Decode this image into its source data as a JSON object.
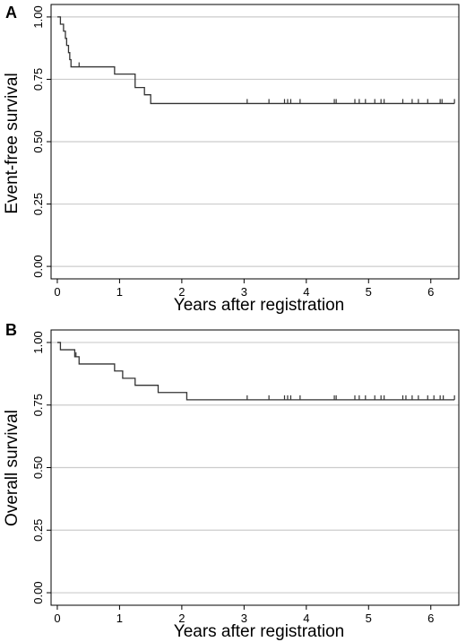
{
  "chart_data": [
    {
      "panel_letter": "A",
      "type": "line",
      "step": true,
      "xlabel": "Years after registration",
      "ylabel": "Event-free survival",
      "xlim": [
        -0.1,
        6.45
      ],
      "ylim": [
        -0.05,
        1.05
      ],
      "x_ticks": [
        0,
        1,
        2,
        3,
        4,
        5,
        6
      ],
      "y_ticks": [
        "0.00",
        "0.25",
        "0.50",
        "0.75",
        "1.00"
      ],
      "grid": "horizontal",
      "colors": {
        "line": "#333333",
        "grid": "#cccccc",
        "frame": "#000000"
      },
      "steps": [
        [
          0,
          1.0
        ],
        [
          0.05,
          0.971
        ],
        [
          0.1,
          0.943
        ],
        [
          0.13,
          0.914
        ],
        [
          0.15,
          0.886
        ],
        [
          0.18,
          0.857
        ],
        [
          0.2,
          0.829
        ],
        [
          0.22,
          0.8
        ],
        [
          0.92,
          0.771
        ],
        [
          1.25,
          0.717
        ],
        [
          1.4,
          0.688
        ],
        [
          1.5,
          0.653
        ],
        [
          6.38,
          0.653
        ]
      ],
      "censor_x": [
        0.35,
        3.05,
        3.4,
        3.65,
        3.7,
        3.75,
        3.9,
        4.45,
        4.48,
        4.78,
        4.85,
        4.95,
        5.1,
        5.2,
        5.25,
        5.55,
        5.7,
        5.8,
        5.95,
        6.15,
        6.18,
        6.38
      ]
    },
    {
      "panel_letter": "B",
      "type": "line",
      "step": true,
      "xlabel": "Years after registration",
      "ylabel": "Overall survival",
      "xlim": [
        -0.1,
        6.45
      ],
      "ylim": [
        -0.05,
        1.05
      ],
      "x_ticks": [
        0,
        1,
        2,
        3,
        4,
        5,
        6
      ],
      "y_ticks": [
        "0.00",
        "0.25",
        "0.50",
        "0.75",
        "1.00"
      ],
      "grid": "horizontal",
      "colors": {
        "line": "#333333",
        "grid": "#cccccc",
        "frame": "#000000"
      },
      "steps": [
        [
          0,
          1.0
        ],
        [
          0.05,
          0.971
        ],
        [
          0.28,
          0.943
        ],
        [
          0.35,
          0.914
        ],
        [
          0.92,
          0.886
        ],
        [
          1.05,
          0.857
        ],
        [
          1.25,
          0.829
        ],
        [
          1.62,
          0.8
        ],
        [
          2.08,
          0.771
        ],
        [
          6.38,
          0.771
        ]
      ],
      "censor_x": [
        0.3,
        3.05,
        3.4,
        3.65,
        3.7,
        3.75,
        3.9,
        4.45,
        4.48,
        4.78,
        4.85,
        4.95,
        5.1,
        5.2,
        5.25,
        5.55,
        5.6,
        5.7,
        5.8,
        5.95,
        6.05,
        6.15,
        6.2,
        6.38
      ]
    }
  ]
}
